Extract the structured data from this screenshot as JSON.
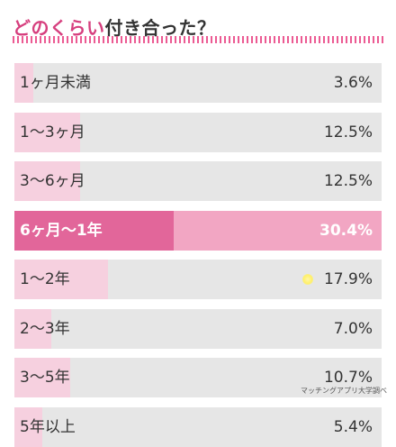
{
  "title": {
    "part1": "どのくらい",
    "part2": "付き合った？"
  },
  "colors": {
    "title_pink": "#d63f7e",
    "track": "#e6e6e6",
    "fill": "#f6d0df",
    "highlight_track": "#f2a6c3",
    "highlight_fill": "#e2669a"
  },
  "chart_data": {
    "type": "bar",
    "orientation": "horizontal",
    "title": "どのくらい付き合った？",
    "categories": [
      "1ヶ月未満",
      "1〜3ヶ月",
      "3〜6ヶ月",
      "6ヶ月〜1年",
      "1〜2年",
      "2〜3年",
      "3〜5年",
      "5年以上"
    ],
    "values": [
      3.6,
      12.5,
      12.5,
      30.4,
      17.9,
      7.0,
      10.7,
      5.4
    ],
    "value_labels": [
      "3.6%",
      "12.5%",
      "12.5%",
      "30.4%",
      "17.9%",
      "7.0%",
      "10.7%",
      "5.4%"
    ],
    "unit": "%",
    "xlim": [
      0,
      70
    ],
    "highlight_index": 3,
    "legend": "none",
    "grid": false
  },
  "source": "マッチングアプリ大学調べ"
}
